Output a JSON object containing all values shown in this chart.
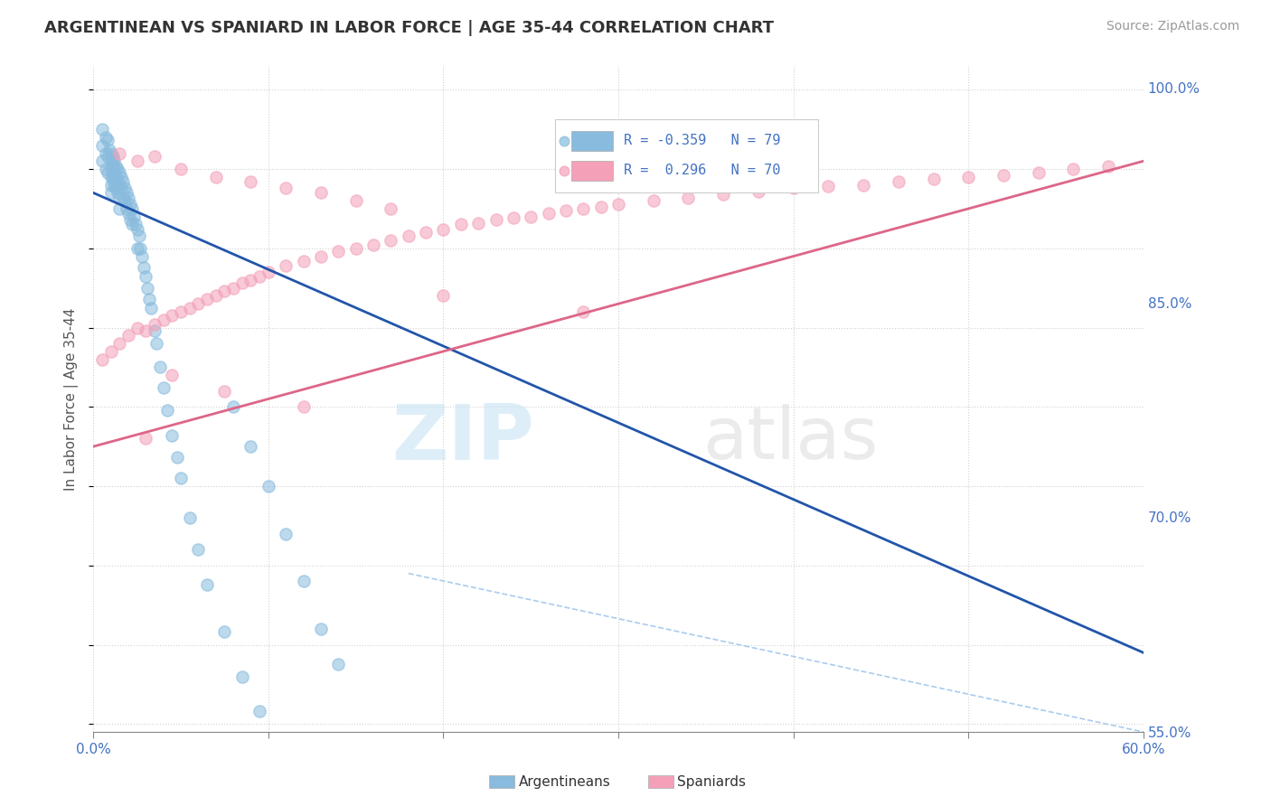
{
  "title": "ARGENTINEAN VS SPANIARD IN LABOR FORCE | AGE 35-44 CORRELATION CHART",
  "source": "Source: ZipAtlas.com",
  "ylabel": "In Labor Force | Age 35-44",
  "xlim": [
    0.0,
    0.6
  ],
  "ylim": [
    0.595,
    1.015
  ],
  "xticks": [
    0.0,
    0.1,
    0.2,
    0.3,
    0.4,
    0.5,
    0.6
  ],
  "yticks_right": [
    1.0,
    0.85,
    0.7,
    0.55
  ],
  "ytick_labels_right": [
    "100.0%",
    "85.0%",
    "70.0%",
    "55.0%"
  ],
  "blue_color": "#88bbdd",
  "pink_color": "#f4a0b8",
  "blue_line_color": "#2255aa",
  "pink_line_color": "#dd6688",
  "blue_trend_x": [
    0.0,
    0.6
  ],
  "blue_trend_y": [
    0.935,
    0.645
  ],
  "pink_trend_x": [
    0.0,
    0.6
  ],
  "pink_trend_y": [
    0.775,
    0.955
  ],
  "dashed_line_x": [
    0.18,
    0.6
  ],
  "dashed_line_y": [
    0.695,
    0.595
  ],
  "argentineans_x": [
    0.005,
    0.005,
    0.005,
    0.007,
    0.007,
    0.007,
    0.008,
    0.008,
    0.008,
    0.009,
    0.01,
    0.01,
    0.01,
    0.01,
    0.01,
    0.01,
    0.011,
    0.011,
    0.011,
    0.012,
    0.012,
    0.012,
    0.013,
    0.013,
    0.013,
    0.014,
    0.014,
    0.014,
    0.015,
    0.015,
    0.015,
    0.015,
    0.016,
    0.016,
    0.017,
    0.017,
    0.018,
    0.018,
    0.019,
    0.019,
    0.02,
    0.02,
    0.021,
    0.021,
    0.022,
    0.022,
    0.023,
    0.024,
    0.025,
    0.025,
    0.026,
    0.027,
    0.028,
    0.029,
    0.03,
    0.031,
    0.032,
    0.033,
    0.035,
    0.036,
    0.038,
    0.04,
    0.042,
    0.045,
    0.048,
    0.05,
    0.055,
    0.06,
    0.065,
    0.075,
    0.085,
    0.095,
    0.1,
    0.11,
    0.12,
    0.13,
    0.14,
    0.08,
    0.09
  ],
  "argentineans_y": [
    0.975,
    0.965,
    0.955,
    0.97,
    0.96,
    0.95,
    0.968,
    0.958,
    0.948,
    0.962,
    0.96,
    0.955,
    0.95,
    0.945,
    0.94,
    0.935,
    0.958,
    0.952,
    0.944,
    0.955,
    0.948,
    0.94,
    0.952,
    0.945,
    0.938,
    0.95,
    0.942,
    0.935,
    0.948,
    0.94,
    0.932,
    0.925,
    0.945,
    0.938,
    0.942,
    0.932,
    0.938,
    0.93,
    0.935,
    0.925,
    0.932,
    0.922,
    0.928,
    0.918,
    0.925,
    0.915,
    0.92,
    0.915,
    0.912,
    0.9,
    0.908,
    0.9,
    0.895,
    0.888,
    0.882,
    0.875,
    0.868,
    0.862,
    0.848,
    0.84,
    0.825,
    0.812,
    0.798,
    0.782,
    0.768,
    0.755,
    0.73,
    0.71,
    0.688,
    0.658,
    0.63,
    0.608,
    0.75,
    0.72,
    0.69,
    0.66,
    0.638,
    0.8,
    0.775
  ],
  "spaniards_x": [
    0.005,
    0.01,
    0.015,
    0.02,
    0.025,
    0.03,
    0.035,
    0.04,
    0.045,
    0.05,
    0.055,
    0.06,
    0.065,
    0.07,
    0.075,
    0.08,
    0.085,
    0.09,
    0.095,
    0.1,
    0.11,
    0.12,
    0.13,
    0.14,
    0.15,
    0.16,
    0.17,
    0.18,
    0.19,
    0.2,
    0.21,
    0.22,
    0.23,
    0.24,
    0.25,
    0.26,
    0.27,
    0.28,
    0.29,
    0.3,
    0.32,
    0.34,
    0.36,
    0.38,
    0.4,
    0.42,
    0.44,
    0.46,
    0.48,
    0.5,
    0.52,
    0.54,
    0.56,
    0.58,
    0.015,
    0.025,
    0.035,
    0.05,
    0.07,
    0.09,
    0.11,
    0.13,
    0.15,
    0.17,
    0.03,
    0.045,
    0.075,
    0.12,
    0.2,
    0.28
  ],
  "spaniards_y": [
    0.83,
    0.835,
    0.84,
    0.845,
    0.85,
    0.848,
    0.852,
    0.855,
    0.858,
    0.86,
    0.862,
    0.865,
    0.868,
    0.87,
    0.873,
    0.875,
    0.878,
    0.88,
    0.882,
    0.885,
    0.889,
    0.892,
    0.895,
    0.898,
    0.9,
    0.902,
    0.905,
    0.908,
    0.91,
    0.912,
    0.915,
    0.916,
    0.918,
    0.919,
    0.92,
    0.922,
    0.924,
    0.925,
    0.926,
    0.928,
    0.93,
    0.932,
    0.934,
    0.936,
    0.938,
    0.939,
    0.94,
    0.942,
    0.944,
    0.945,
    0.946,
    0.948,
    0.95,
    0.952,
    0.96,
    0.955,
    0.958,
    0.95,
    0.945,
    0.942,
    0.938,
    0.935,
    0.93,
    0.925,
    0.78,
    0.82,
    0.81,
    0.8,
    0.87,
    0.86
  ]
}
